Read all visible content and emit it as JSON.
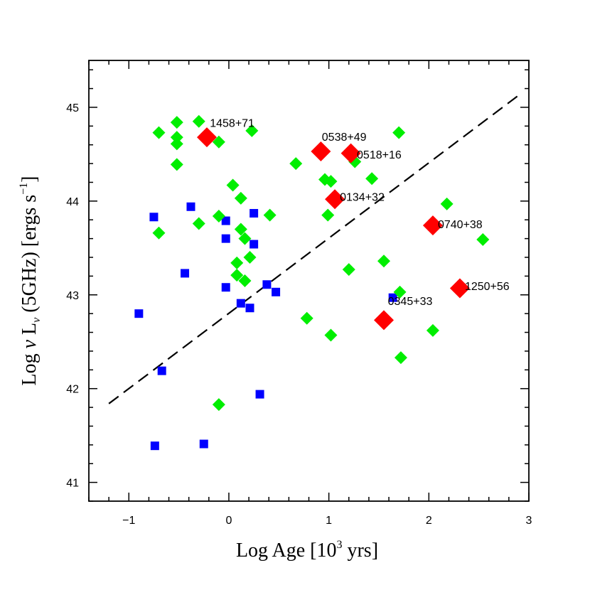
{
  "chart_data": {
    "type": "scatter",
    "xlabel": {
      "main": "Log Age [10",
      "sup": "3",
      "tail": " yrs]"
    },
    "ylabel": {
      "pre": "Log ",
      "nu": "ν",
      "mid": " L",
      "sub": "ν",
      "post": " (5GHz) [ergs s",
      "sup": "−1",
      "end": "]"
    },
    "xlim": [
      -1.4,
      3.0
    ],
    "ylim": [
      40.8,
      45.5
    ],
    "x_ticks": [
      -1,
      0,
      1,
      2,
      3
    ],
    "x_tick_labels": [
      "−1",
      "0",
      "1",
      "2",
      "3"
    ],
    "y_ticks": [
      41,
      42,
      43,
      44,
      45
    ],
    "y_tick_labels": [
      "41",
      "42",
      "43",
      "44",
      "45"
    ],
    "fit_line": {
      "style": "dashed",
      "color": "#000000",
      "x": [
        -1.2,
        2.9
      ],
      "y": [
        41.84,
        45.13
      ]
    },
    "series": [
      {
        "name": "blue squares",
        "marker": "square",
        "color": "#0000ff",
        "points": [
          [
            -0.75,
            43.83
          ],
          [
            -0.38,
            43.94
          ],
          [
            -0.9,
            42.8
          ],
          [
            -0.44,
            43.23
          ],
          [
            -0.67,
            42.19
          ],
          [
            -0.74,
            41.39
          ],
          [
            -0.25,
            41.41
          ],
          [
            -0.03,
            43.79
          ],
          [
            -0.03,
            43.6
          ],
          [
            -0.03,
            43.08
          ],
          [
            0.25,
            43.87
          ],
          [
            0.25,
            43.54
          ],
          [
            0.12,
            42.91
          ],
          [
            0.21,
            42.86
          ],
          [
            0.38,
            43.11
          ],
          [
            0.47,
            43.03
          ],
          [
            0.31,
            41.94
          ],
          [
            1.64,
            42.97
          ]
        ]
      },
      {
        "name": "green diamonds",
        "marker": "diamond",
        "color": "#00ee00",
        "points": [
          [
            -0.7,
            44.73
          ],
          [
            -0.52,
            44.84
          ],
          [
            -0.3,
            44.85
          ],
          [
            -0.52,
            44.68
          ],
          [
            -0.52,
            44.61
          ],
          [
            -0.1,
            44.63
          ],
          [
            -0.52,
            44.39
          ],
          [
            0.23,
            44.75
          ],
          [
            0.04,
            44.17
          ],
          [
            0.12,
            44.03
          ],
          [
            -0.1,
            43.84
          ],
          [
            -0.3,
            43.76
          ],
          [
            -0.7,
            43.66
          ],
          [
            0.41,
            43.85
          ],
          [
            0.12,
            43.7
          ],
          [
            0.16,
            43.6
          ],
          [
            0.21,
            43.4
          ],
          [
            0.08,
            43.34
          ],
          [
            0.08,
            43.21
          ],
          [
            0.16,
            43.15
          ],
          [
            -0.1,
            41.83
          ],
          [
            0.67,
            44.4
          ],
          [
            0.96,
            44.23
          ],
          [
            1.02,
            44.21
          ],
          [
            1.26,
            44.42
          ],
          [
            1.43,
            44.24
          ],
          [
            0.99,
            43.85
          ],
          [
            1.7,
            44.73
          ],
          [
            1.2,
            43.27
          ],
          [
            1.55,
            43.36
          ],
          [
            1.71,
            43.03
          ],
          [
            0.78,
            42.75
          ],
          [
            1.02,
            42.57
          ],
          [
            1.72,
            42.33
          ],
          [
            2.04,
            42.62
          ],
          [
            2.18,
            43.97
          ],
          [
            2.54,
            43.59
          ]
        ]
      },
      {
        "name": "red diamonds",
        "marker": "diamond",
        "color": "#ff0000",
        "points": [
          [
            -0.22,
            44.68
          ],
          [
            0.92,
            44.53
          ],
          [
            1.22,
            44.51
          ],
          [
            1.06,
            44.02
          ],
          [
            2.04,
            43.74
          ],
          [
            2.31,
            43.07
          ],
          [
            1.55,
            42.73
          ]
        ]
      }
    ],
    "annotations": [
      {
        "text": "1458+71",
        "x": -0.19,
        "y": 44.83
      },
      {
        "text": "0538+49",
        "x": 0.93,
        "y": 44.68
      },
      {
        "text": "0518+16",
        "x": 1.28,
        "y": 44.49
      },
      {
        "text": "0134+32",
        "x": 1.11,
        "y": 44.04
      },
      {
        "text": "0740+38",
        "x": 2.09,
        "y": 43.75
      },
      {
        "text": "1250+56",
        "x": 2.36,
        "y": 43.09
      },
      {
        "text": "0345+33",
        "x": 1.59,
        "y": 42.93
      }
    ]
  }
}
